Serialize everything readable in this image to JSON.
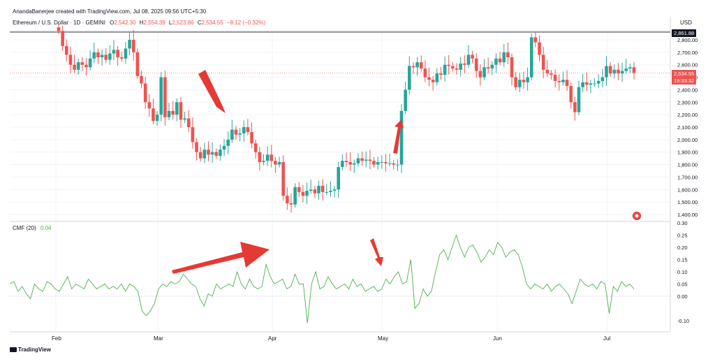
{
  "header": {
    "credit": "AnandaBanerjee created with TradingView.com, Jul 08, 2025 09:56 UTC+5:30"
  },
  "legend": {
    "symbol": "Ethereum / U.S. Dollar · 1D · GEMINI",
    "open_label": "O",
    "open": "2,542.30",
    "high_label": "H",
    "high": "2,554.39",
    "low_label": "L",
    "low": "2,523.86",
    "close_label": "C",
    "close": "2,534.55",
    "change": "−8.12 (−0.32%)",
    "up_color": "#26a69a",
    "down_color": "#ef5350"
  },
  "price_scale": {
    "currency": "USD",
    "high_tag": "2,861.88",
    "last_price": "2,534.55",
    "countdown": "19:33:32"
  },
  "indicator": {
    "name": "CMF (20)",
    "value": "0.04",
    "color": "#4caf50"
  },
  "footer": {
    "brand": "TradingView"
  },
  "chart_data": [
    {
      "type": "candlestick",
      "title": "Ethereum / U.S. Dollar · 1D · GEMINI",
      "ylabel": "USD",
      "ylim": [
        1350,
        2950
      ],
      "yticks": [
        1400,
        1500,
        1600,
        1700,
        1800,
        1900,
        2000,
        2100,
        2200,
        2300,
        2400,
        2500,
        2600,
        2700,
        2800
      ],
      "xticks": [
        "Feb",
        "Mar",
        "Apr",
        "May",
        "Jun",
        "Jul"
      ],
      "reference_lines": [
        2861.88,
        2534.55
      ],
      "closes": [
        2870,
        2750,
        2680,
        2600,
        2560,
        2620,
        2600,
        2580,
        2650,
        2700,
        2660,
        2680,
        2640,
        2690,
        2720,
        2660,
        2650,
        2730,
        2800,
        2700,
        2510,
        2450,
        2300,
        2250,
        2150,
        2200,
        2500,
        2180,
        2230,
        2200,
        2300,
        2160,
        2170,
        2100,
        1980,
        1900,
        1850,
        1920,
        1880,
        1900,
        1870,
        1920,
        1950,
        2000,
        2080,
        2040,
        2050,
        2100,
        2060,
        1970,
        1900,
        1820,
        1830,
        1880,
        1830,
        1800,
        1820,
        1550,
        1490,
        1480,
        1620,
        1580,
        1550,
        1590,
        1600,
        1570,
        1630,
        1580,
        1580,
        1590,
        1600,
        1780,
        1830,
        1820,
        1800,
        1810,
        1850,
        1830,
        1840,
        1830,
        1800,
        1820,
        1820,
        1810,
        1810,
        1800,
        1800,
        2230,
        2400,
        2590,
        2580,
        2620,
        2570,
        2500,
        2480,
        2460,
        2530,
        2520,
        2600,
        2590,
        2570,
        2560,
        2610,
        2600,
        2680,
        2650,
        2550,
        2500,
        2580,
        2570,
        2600,
        2650,
        2620,
        2700,
        2660,
        2500,
        2420,
        2480,
        2460,
        2500,
        2820,
        2780,
        2680,
        2560,
        2530,
        2520,
        2470,
        2460,
        2480,
        2430,
        2300,
        2220,
        2420,
        2460,
        2440,
        2450,
        2450,
        2470,
        2500,
        2590,
        2530,
        2560,
        2530,
        2550,
        2570,
        2580,
        2534.55
      ]
    },
    {
      "type": "line",
      "title": "CMF (20)",
      "ylim": [
        -0.13,
        0.31
      ],
      "yticks": [
        -0.1,
        0.0,
        0.05,
        0.1,
        0.15,
        0.2,
        0.25,
        0.3
      ],
      "series": [
        {
          "name": "CMF (20)",
          "values": [
            0.05,
            0.06,
            0.02,
            0.04,
            0.01,
            -0.01,
            0.05,
            0.03,
            0.02,
            0.06,
            0.05,
            0.03,
            0.02,
            0.05,
            0.08,
            0.03,
            0.05,
            0.04,
            0.03,
            0.07,
            0.05,
            0.03,
            0.04,
            0.05,
            0.03,
            0.04,
            0.03,
            0.05,
            0.02,
            0.05,
            0.04,
            0.02,
            -0.06,
            -0.08,
            -0.06,
            -0.03,
            0.03,
            0.05,
            0.04,
            0.06,
            0.05,
            0.06,
            0.09,
            0.07,
            0.05,
            0.04,
            -0.01,
            -0.04,
            0.01,
            0.0,
            0.05,
            0.03,
            0.04,
            0.05,
            0.04,
            0.1,
            0.05,
            0.03,
            0.07,
            0.04,
            0.03,
            0.04,
            0.13,
            0.08,
            0.05,
            0.06,
            0.07,
            0.03,
            0.04,
            0.09,
            0.05,
            0.05,
            -0.11,
            0.05,
            0.1,
            0.03,
            0.04,
            0.08,
            0.05,
            0.03,
            0.04,
            0.05,
            0.03,
            0.07,
            0.04,
            0.05,
            0.02,
            0.03,
            0.04,
            0.02,
            0.03,
            0.07,
            0.05,
            0.08,
            0.1,
            0.05,
            0.06,
            0.15,
            -0.05,
            -0.03,
            0.03,
            0.0,
            0.02,
            0.1,
            0.17,
            0.19,
            0.15,
            0.2,
            0.25,
            0.2,
            0.16,
            0.2,
            0.21,
            0.18,
            0.14,
            0.16,
            0.19,
            0.17,
            0.22,
            0.2,
            0.16,
            0.18,
            0.19,
            0.17,
            0.12,
            0.05,
            0.03,
            0.05,
            0.04,
            0.03,
            0.05,
            0.02,
            0.04,
            0.05,
            0.03,
            0.01,
            -0.03,
            0.02,
            0.07,
            0.05,
            0.04,
            0.05,
            0.03,
            0.06,
            0.05,
            -0.07,
            0.04,
            0.02,
            0.06,
            0.04,
            0.05,
            0.03
          ]
        }
      ]
    }
  ]
}
